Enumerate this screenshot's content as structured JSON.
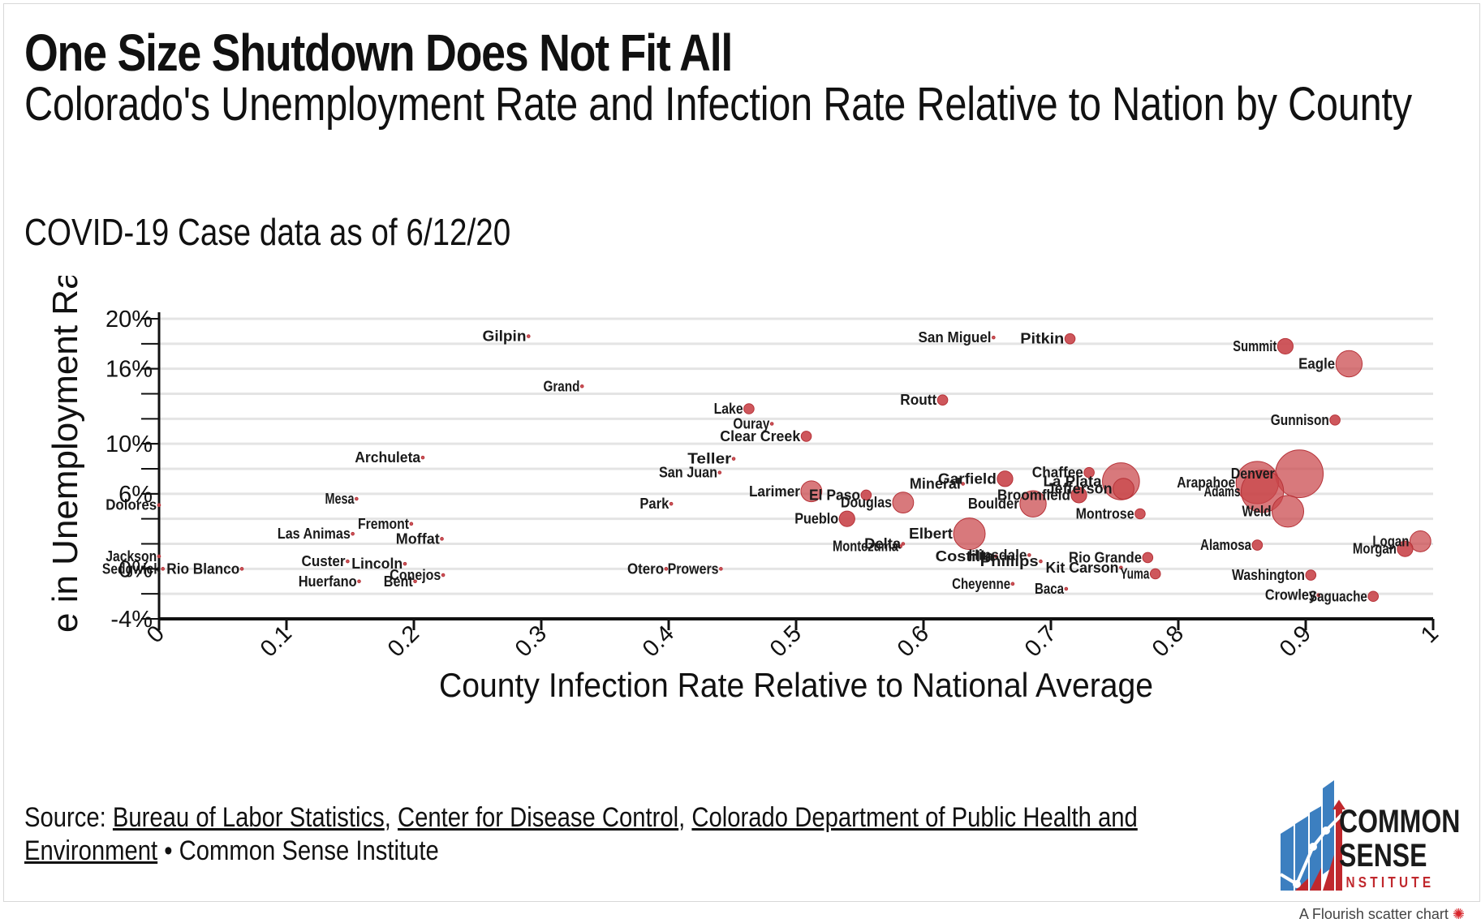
{
  "page": {
    "title": "One Size Shutdown Does Not Fit All",
    "subtitle": "Colorado's Unemployment Rate and Infection Rate Relative to Nation by County",
    "caption": "COVID-19 Case data as of 6/12/20",
    "source_prefix": "Source:",
    "source_links": [
      "Bureau of Labor Statistics",
      "Center for Disease Control",
      "Colorado Department of Public Health and Environment"
    ],
    "source_separator": ",",
    "source_suffix": "• Common Sense Institute",
    "logo_line1": "COMMON",
    "logo_line2": "SENSE",
    "logo_line3": "INSTITUTE",
    "credit": "A Flourish scatter chart"
  },
  "colors": {
    "point_fill": "#c9454a",
    "point_stroke": "#b63238",
    "gridline": "#e4e4e4",
    "axis": "#111111",
    "logo_blue": "#3c7fc0",
    "logo_red": "#c0282d"
  },
  "chart_data": {
    "type": "scatter",
    "title": "Colorado's Unemployment Rate and Infection Rate Relative to Nation by County",
    "xlabel": "County Infection Rate Relative to National Average",
    "ylabel": "e in Unemployment Rate, March",
    "xlim": [
      0,
      1
    ],
    "ylim": [
      -4,
      20
    ],
    "x_ticks": [
      0,
      0.1,
      0.2,
      0.3,
      0.4,
      0.5,
      0.6,
      0.7,
      0.8,
      0.9,
      1
    ],
    "x_tick_labels": [
      "0",
      "0.1",
      "0.2",
      "0.3",
      "0.4",
      "0.5",
      "0.6",
      "0.7",
      "0.8",
      "0.9",
      "1"
    ],
    "y_ticks": [
      -4,
      0,
      6,
      10,
      16,
      20
    ],
    "y_tick_labels": [
      "-4%",
      "0%",
      "6%",
      "10%",
      "16%",
      "20%"
    ],
    "y_grid_step": 2,
    "points": [
      {
        "name": "Gilpin",
        "x": 0.29,
        "y": 18.6,
        "size": 0
      },
      {
        "name": "San Miguel",
        "x": 0.655,
        "y": 18.5,
        "size": 0
      },
      {
        "name": "Pitkin",
        "x": 0.715,
        "y": 18.4,
        "size": 1
      },
      {
        "name": "Summit",
        "x": 0.884,
        "y": 17.8,
        "size": 2
      },
      {
        "name": "Eagle",
        "x": 0.934,
        "y": 16.4,
        "size": 4
      },
      {
        "name": "Grand",
        "x": 0.332,
        "y": 14.6,
        "size": 0
      },
      {
        "name": "Routt",
        "x": 0.615,
        "y": 13.5,
        "size": 1
      },
      {
        "name": "Lake",
        "x": 0.463,
        "y": 12.8,
        "size": 1
      },
      {
        "name": "Ouray",
        "x": 0.481,
        "y": 11.6,
        "size": 0
      },
      {
        "name": "Clear Creek",
        "x": 0.508,
        "y": 10.6,
        "size": 1
      },
      {
        "name": "Gunnison",
        "x": 0.923,
        "y": 11.9,
        "size": 1
      },
      {
        "name": "Archuleta",
        "x": 0.207,
        "y": 8.9,
        "size": 0
      },
      {
        "name": "Teller",
        "x": 0.451,
        "y": 8.8,
        "size": 0
      },
      {
        "name": "San Juan",
        "x": 0.44,
        "y": 7.7,
        "size": 0
      },
      {
        "name": "Chaffee",
        "x": 0.73,
        "y": 7.7,
        "size": 1
      },
      {
        "name": "La Plata",
        "x": 0.755,
        "y": 7.0,
        "size": 6
      },
      {
        "name": "Denver",
        "x": 0.895,
        "y": 7.6,
        "size": 8
      },
      {
        "name": "Garfield",
        "x": 0.664,
        "y": 7.2,
        "size": 2
      },
      {
        "name": "Mineral",
        "x": 0.631,
        "y": 6.8,
        "size": 0
      },
      {
        "name": "Larimer",
        "x": 0.512,
        "y": 6.2,
        "size": 3
      },
      {
        "name": "El Paso",
        "x": 0.555,
        "y": 5.9,
        "size": 1
      },
      {
        "name": "Douglas",
        "x": 0.584,
        "y": 5.3,
        "size": 3
      },
      {
        "name": "Jefferson",
        "x": 0.757,
        "y": 6.4,
        "size": 3
      },
      {
        "name": "Broomfield",
        "x": 0.722,
        "y": 5.9,
        "size": 2
      },
      {
        "name": "Boulder",
        "x": 0.686,
        "y": 5.2,
        "size": 4
      },
      {
        "name": "Arapahoe",
        "x": 0.862,
        "y": 6.9,
        "size": 7
      },
      {
        "name": "Adams",
        "x": 0.866,
        "y": 6.2,
        "size": 7
      },
      {
        "name": "Weld",
        "x": 0.886,
        "y": 4.6,
        "size": 5
      },
      {
        "name": "Mesa",
        "x": 0.155,
        "y": 5.6,
        "size": 0
      },
      {
        "name": "Dolores",
        "x": 0.0,
        "y": 5.1,
        "size": 0
      },
      {
        "name": "Park",
        "x": 0.402,
        "y": 5.2,
        "size": 0
      },
      {
        "name": "Montrose",
        "x": 0.77,
        "y": 4.4,
        "size": 1
      },
      {
        "name": "Pueblo",
        "x": 0.54,
        "y": 4.0,
        "size": 2
      },
      {
        "name": "Fremont",
        "x": 0.198,
        "y": 3.6,
        "size": 0
      },
      {
        "name": "Las Animas",
        "x": 0.152,
        "y": 2.8,
        "size": 0
      },
      {
        "name": "Moffat",
        "x": 0.222,
        "y": 2.4,
        "size": 0
      },
      {
        "name": "Elbert",
        "x": 0.636,
        "y": 2.8,
        "size": 5
      },
      {
        "name": "Delta",
        "x": 0.584,
        "y": 2.0,
        "size": 0
      },
      {
        "name": "Montezuma",
        "x": 0.582,
        "y": 1.8,
        "size": 0
      },
      {
        "name": "Alamosa",
        "x": 0.862,
        "y": 1.9,
        "size": 1
      },
      {
        "name": "Logan",
        "x": 0.99,
        "y": 2.2,
        "size": 3
      },
      {
        "name": "Morgan",
        "x": 0.978,
        "y": 1.6,
        "size": 2
      },
      {
        "name": "Costilla",
        "x": 0.657,
        "y": 1.0,
        "size": 0
      },
      {
        "name": "Hinsdale",
        "x": 0.683,
        "y": 1.1,
        "size": 0
      },
      {
        "name": "Phillips",
        "x": 0.692,
        "y": 0.6,
        "size": 0
      },
      {
        "name": "Rio Grande",
        "x": 0.776,
        "y": 0.9,
        "size": 1
      },
      {
        "name": "Kit Carson",
        "x": 0.755,
        "y": 0.1,
        "size": 0
      },
      {
        "name": "Yuma",
        "x": 0.782,
        "y": -0.4,
        "size": 1
      },
      {
        "name": "Washington",
        "x": 0.904,
        "y": -0.5,
        "size": 1
      },
      {
        "name": "Crowley",
        "x": 0.91,
        "y": -2.1,
        "size": 0
      },
      {
        "name": "Saguache",
        "x": 0.953,
        "y": -2.2,
        "size": 1
      },
      {
        "name": "Jackson",
        "x": 0.0,
        "y": 1.0,
        "size": 0
      },
      {
        "name": "Sedgwick",
        "x": 0.003,
        "y": 0.0,
        "size": 0
      },
      {
        "name": "Rio Blanco",
        "x": 0.065,
        "y": 0.0,
        "size": 0
      },
      {
        "name": "Custer",
        "x": 0.148,
        "y": 0.6,
        "size": 0
      },
      {
        "name": "Lincoln",
        "x": 0.193,
        "y": 0.4,
        "size": 0
      },
      {
        "name": "Huerfano",
        "x": 0.157,
        "y": -1.0,
        "size": 0
      },
      {
        "name": "Bent",
        "x": 0.201,
        "y": -1.0,
        "size": 0
      },
      {
        "name": "Conejos",
        "x": 0.223,
        "y": -0.5,
        "size": 0
      },
      {
        "name": "Otero",
        "x": 0.398,
        "y": 0.0,
        "size": 0
      },
      {
        "name": "Prowers",
        "x": 0.441,
        "y": 0.0,
        "size": 0
      },
      {
        "name": "Cheyenne",
        "x": 0.67,
        "y": -1.2,
        "size": 0
      },
      {
        "name": "Baca",
        "x": 0.712,
        "y": -1.6,
        "size": 0
      }
    ]
  }
}
